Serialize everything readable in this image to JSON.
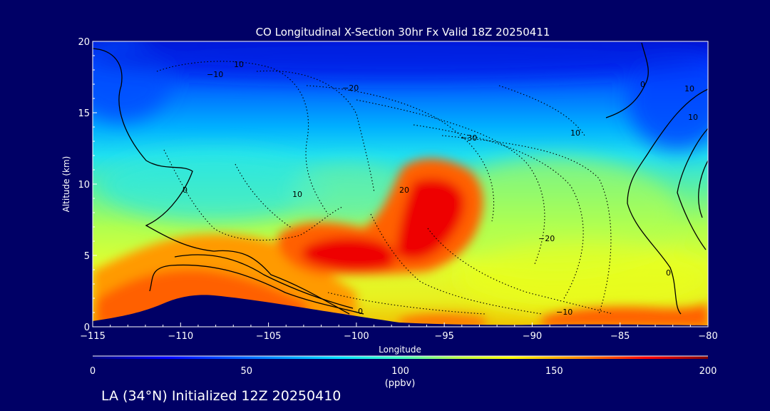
{
  "chart_data": {
    "type": "heatmap",
    "title": "CO Longitudinal X-Section 30hr  Fx Valid 18Z 20250411",
    "xlabel": "Longitude",
    "ylabel": "Altitude (km)",
    "xlim": [
      -115,
      -80
    ],
    "ylim": [
      0,
      20
    ],
    "x_ticks": [
      "−115",
      "−110",
      "−105",
      "−100",
      "−95",
      "−90",
      "−85",
      "−80"
    ],
    "y_ticks": [
      "0",
      "5",
      "10",
      "15",
      "20"
    ],
    "colorbar": {
      "ticks": [
        "0",
        "50",
        "100",
        "150",
        "200"
      ],
      "range": [
        0,
        200
      ],
      "units": "(ppbv)"
    },
    "contour_labels": [
      "10",
      "−20",
      "−30",
      "20",
      "10",
      "0",
      "−20",
      "10",
      "10",
      "0",
      "0",
      "−10",
      "10",
      "0",
      "−10"
    ],
    "co_hotspots_ppbv": [
      {
        "lon": -101.5,
        "alt": 5.0,
        "value": 185
      },
      {
        "lon": -97.5,
        "alt": 6.0,
        "value": 175
      },
      {
        "lon": -95.2,
        "alt": 8.5,
        "value": 170
      },
      {
        "lon": -108,
        "alt": 3.0,
        "value": 150
      },
      {
        "lon": -82,
        "alt": 0.6,
        "value": 150
      }
    ]
  },
  "footer": "LA (34°N) Initialized 12Z 20250410",
  "colors": {
    "background": "#000066",
    "terrain": "#000066",
    "text": "#ffffff",
    "contour": "#000000"
  }
}
